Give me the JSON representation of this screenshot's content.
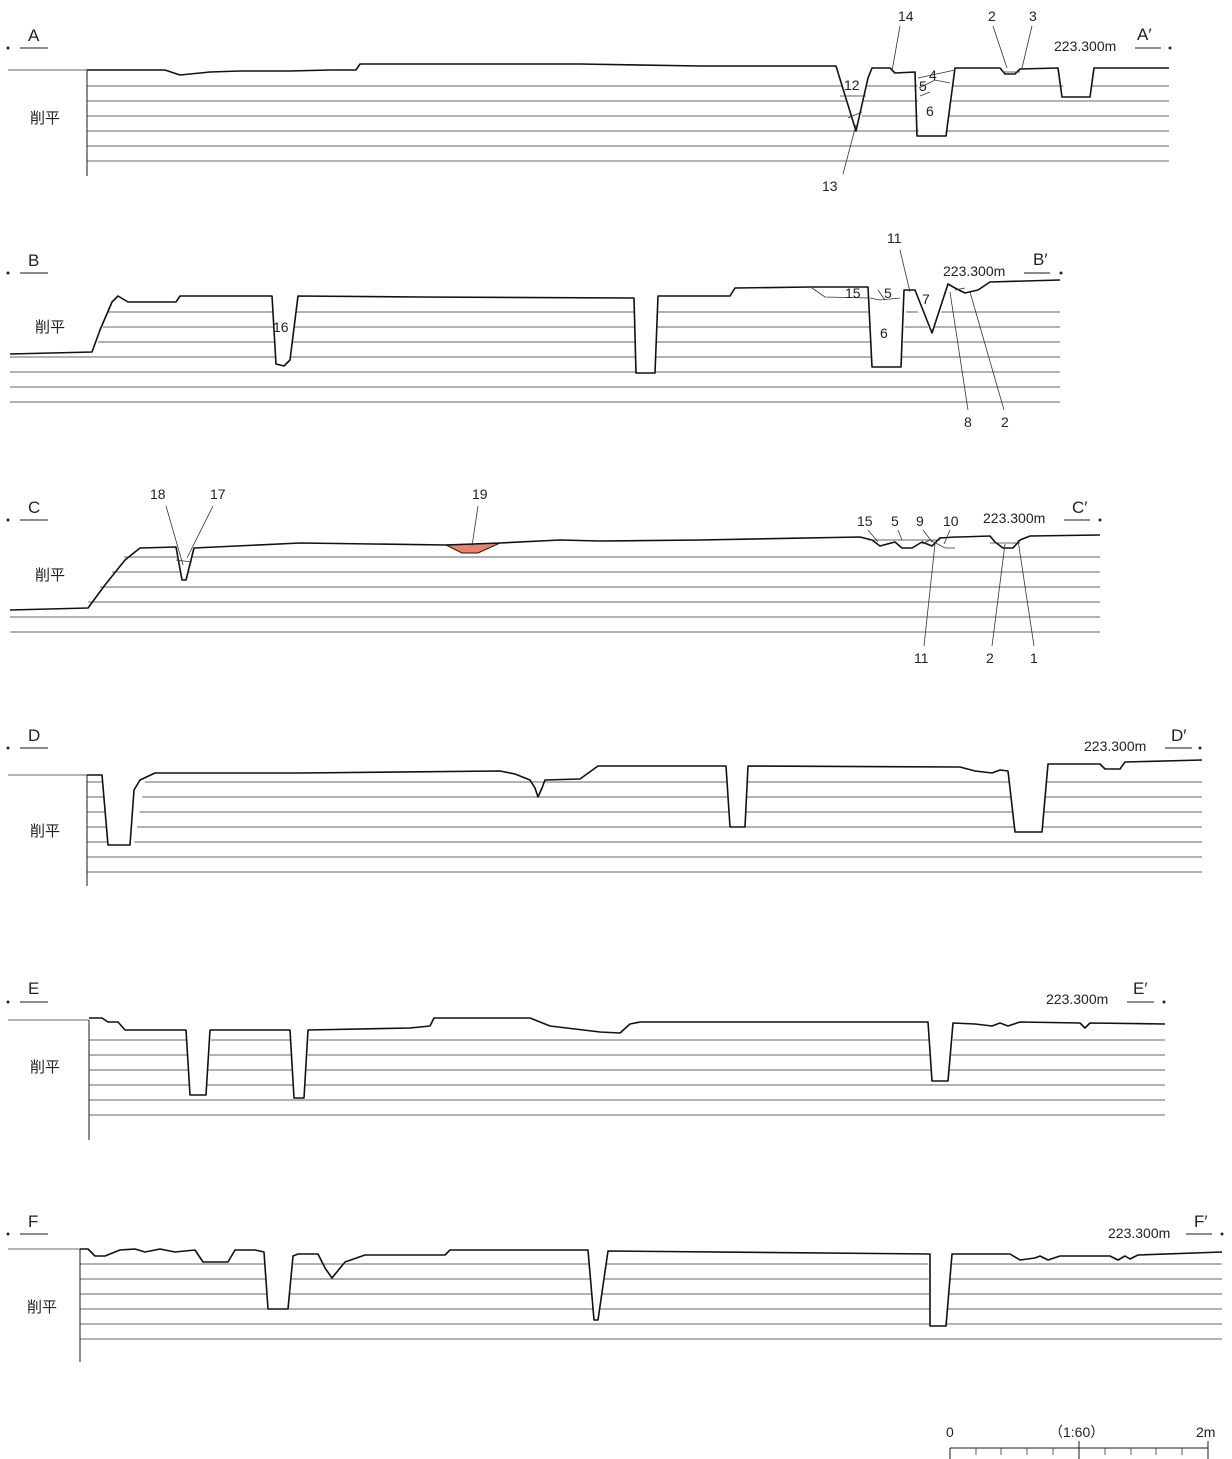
{
  "profiles": [
    {
      "id": "A",
      "start": "A",
      "end": "A′",
      "elevation": "223.300m",
      "side_note": "削平",
      "numbers": [
        "14",
        "2",
        "3",
        "12",
        "4",
        "5",
        "6",
        "13"
      ]
    },
    {
      "id": "B",
      "start": "B",
      "end": "B′",
      "elevation": "223.300m",
      "side_note": "削平",
      "numbers": [
        "11",
        "16",
        "15",
        "5",
        "7",
        "6",
        "8",
        "2"
      ]
    },
    {
      "id": "C",
      "start": "C",
      "end": "C′",
      "elevation": "223.300m",
      "side_note": "削平",
      "numbers": [
        "18",
        "17",
        "19",
        "15",
        "5",
        "9",
        "10",
        "11",
        "2",
        "1"
      ]
    },
    {
      "id": "D",
      "start": "D",
      "end": "D′",
      "elevation": "223.300m",
      "side_note": "削平",
      "numbers": []
    },
    {
      "id": "E",
      "start": "E",
      "end": "E′",
      "elevation": "223.300m",
      "side_note": "削平",
      "numbers": []
    },
    {
      "id": "F",
      "start": "F",
      "end": "F′",
      "elevation": "223.300m",
      "side_note": "削平",
      "numbers": []
    }
  ],
  "scale_bar": {
    "start": "0",
    "ratio": "（1:60）",
    "end": "2m"
  },
  "colors": {
    "line": "#1a1a1a",
    "highlight_fill": "#e8836b",
    "background": "#ffffff"
  }
}
